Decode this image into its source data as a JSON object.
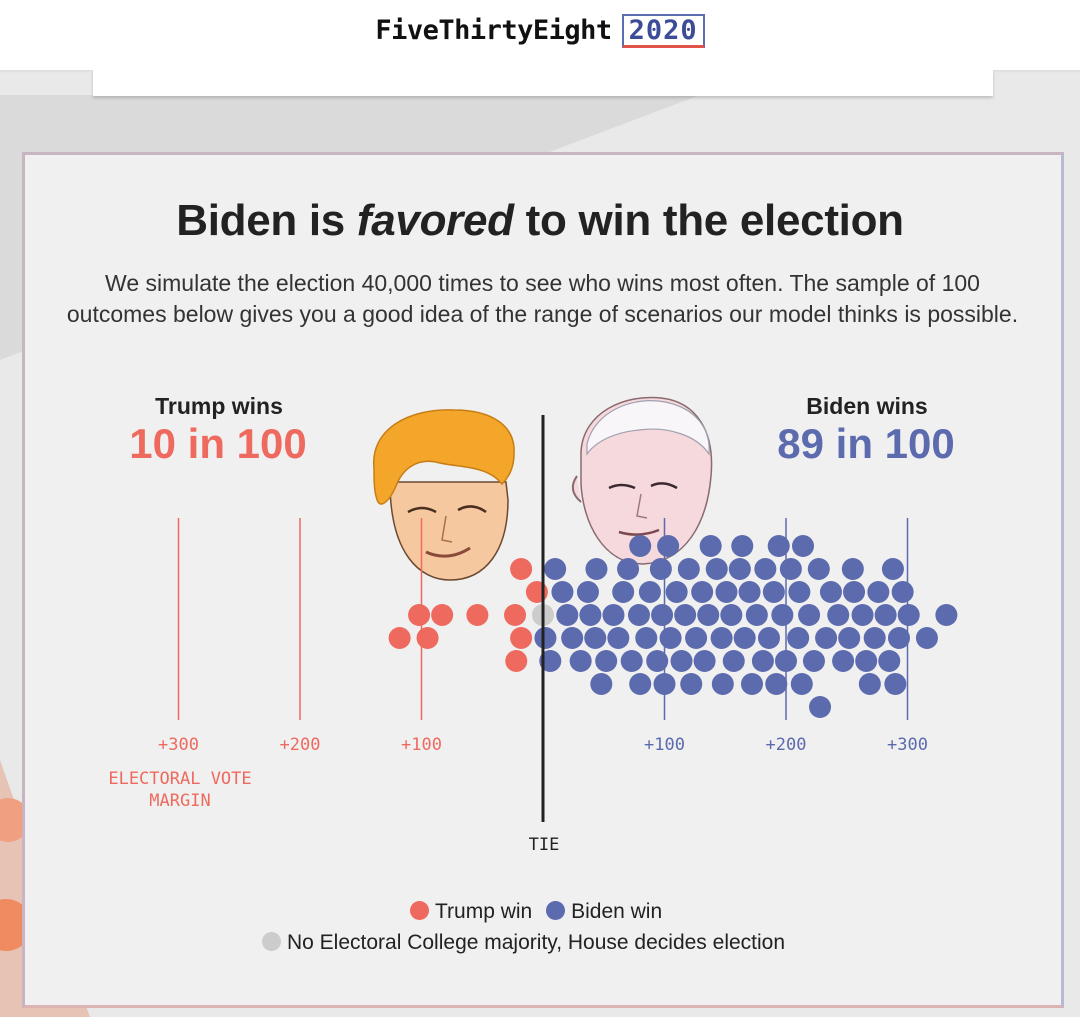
{
  "header": {
    "brand_name": "FiveThirtyEight",
    "brand_year": "2020"
  },
  "headline": {
    "part1": "Biden is ",
    "emphasis": "favored",
    "part2": " to win the election"
  },
  "intro_text": "We simulate the election 40,000 times to see who wins most often. The sample of 100 outcomes below gives you a good idea of the range of scenarios our model thinks is possible.",
  "colors": {
    "trump": "#ee6a5f",
    "biden": "#5c6aae",
    "tie": "#cccccc",
    "axis": "#222222"
  },
  "illustrations": {
    "trump": "trump-portrait-icon",
    "biden": "biden-portrait-icon"
  },
  "chart_data": {
    "type": "scatter",
    "title": "Biden is favored to win the election",
    "xlabel": "ELECTORAL VOTE MARGIN",
    "center_label": "TIE",
    "trump_summary": {
      "heading": "Trump wins",
      "count": "10 in 100",
      "value": 10
    },
    "biden_summary": {
      "heading": "Biden wins",
      "count": "89 in 100",
      "value": 89
    },
    "tie_count": 1,
    "xlim": [
      -375,
      375
    ],
    "trump_ticks": [
      {
        "value": -300,
        "label": "+300"
      },
      {
        "value": -200,
        "label": "+200"
      },
      {
        "value": -100,
        "label": "+100"
      }
    ],
    "biden_ticks": [
      {
        "value": 100,
        "label": "+100"
      },
      {
        "value": 200,
        "label": "+200"
      },
      {
        "value": 300,
        "label": "+300"
      }
    ],
    "trump_margins": [
      102,
      18,
      5,
      83,
      118,
      54,
      23,
      95,
      22,
      18
    ],
    "tie_margins": [
      0
    ],
    "biden_margins": [
      2,
      6,
      10,
      16,
      20,
      24,
      31,
      37,
      39,
      43,
      44,
      48,
      52,
      58,
      62,
      66,
      70,
      73,
      79,
      80,
      80,
      85,
      88,
      94,
      97,
      98,
      100,
      103,
      105,
      110,
      114,
      117,
      120,
      122,
      126,
      131,
      133,
      136,
      138,
      143,
      147,
      148,
      151,
      155,
      157,
      162,
      164,
      166,
      170,
      172,
      176,
      181,
      183,
      186,
      190,
      192,
      194,
      197,
      200,
      204,
      210,
      211,
      213,
      214,
      219,
      223,
      227,
      228,
      233,
      237,
      243,
      247,
      252,
      255,
      256,
      263,
      266,
      269,
      273,
      276,
      282,
      285,
      288,
      290,
      293,
      296,
      301,
      316,
      332
    ],
    "legend": {
      "trump": "Trump win",
      "biden": "Biden win",
      "tie": "No Electoral College majority, House decides election"
    }
  }
}
